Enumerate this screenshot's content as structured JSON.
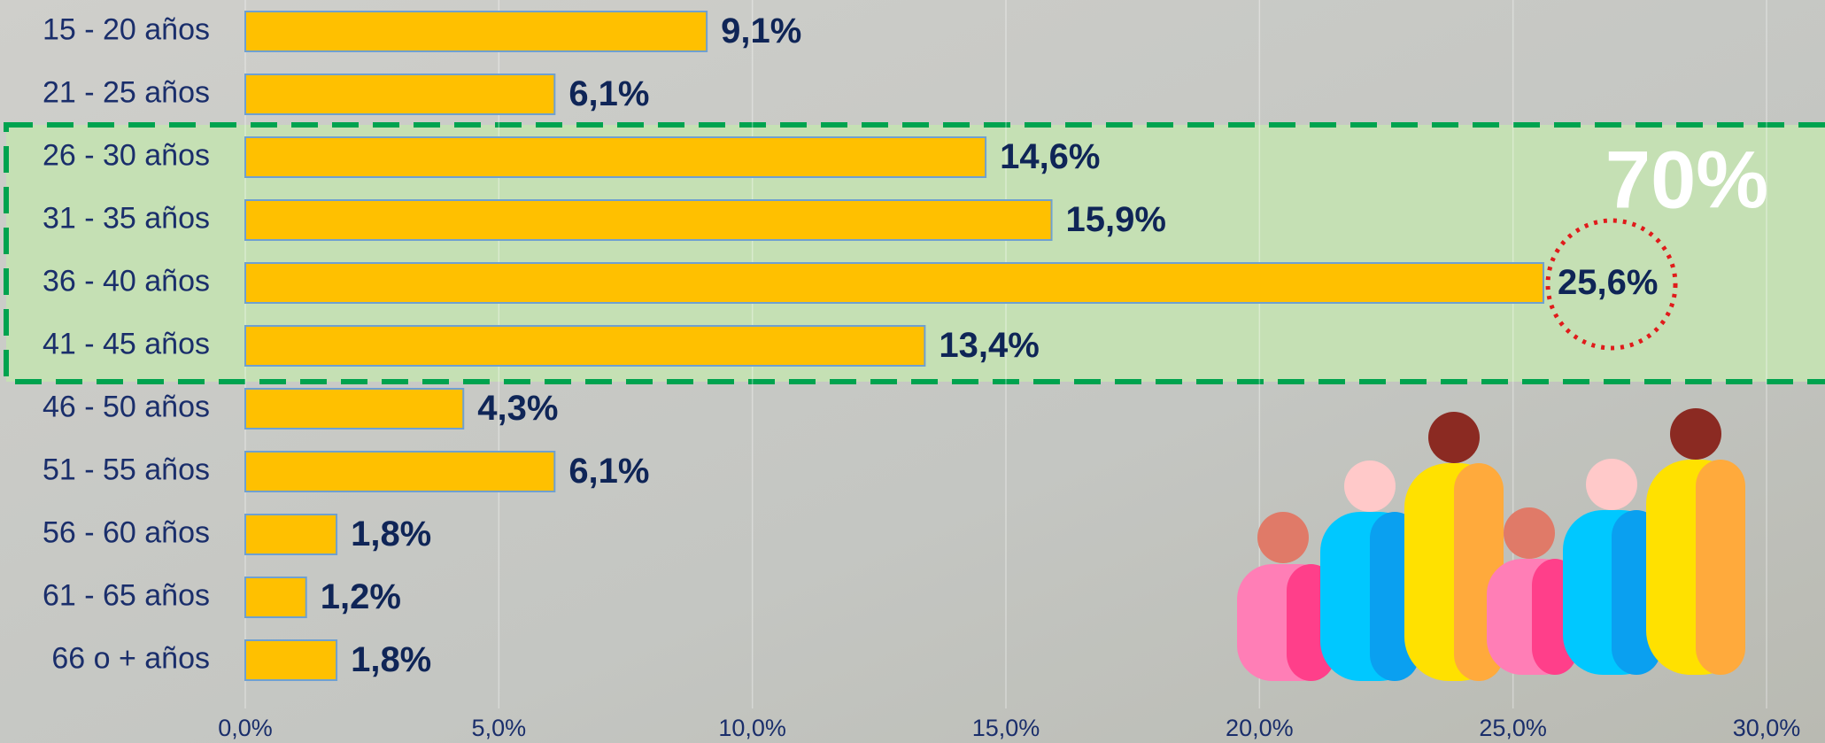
{
  "chart_data": {
    "type": "bar",
    "orientation": "horizontal",
    "categories": [
      "15 - 20 años",
      "21 - 25 años",
      "26 - 30 años",
      "31 - 35 años",
      "36 - 40 años",
      "41 - 45 años",
      "46 - 50 años",
      "51 - 55 años",
      "56 - 60 años",
      "61 - 65 años",
      "66 o + años"
    ],
    "values": [
      9.1,
      6.1,
      14.6,
      15.9,
      25.6,
      13.4,
      4.3,
      6.1,
      1.8,
      1.2,
      1.8
    ],
    "value_labels": [
      "9,1%",
      "6,1%",
      "14,6%",
      "15,9%",
      "25,6%",
      "13,4%",
      "4,3%",
      "6,1%",
      "1,8%",
      "1,2%",
      "1,8%"
    ],
    "color": "#ffc000",
    "xlim": [
      0,
      30
    ],
    "xticks": [
      {
        "value": 0,
        "label": "0,0%"
      },
      {
        "value": 5,
        "label": "5,0%"
      },
      {
        "value": 10,
        "label": "10,0%"
      },
      {
        "value": 15,
        "label": "15,0%"
      },
      {
        "value": 20,
        "label": "20,0%"
      },
      {
        "value": 25,
        "label": "25,0%"
      },
      {
        "value": 30,
        "label": "30,0%"
      }
    ],
    "grid": true,
    "annotation": "70%"
  }
}
